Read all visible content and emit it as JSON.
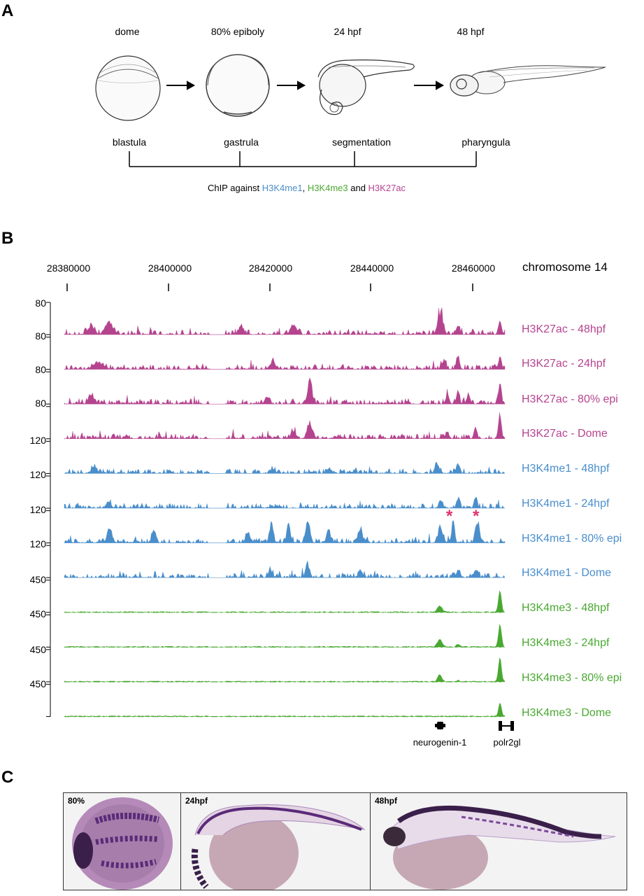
{
  "panels": {
    "a": "A",
    "b": "B",
    "c": "C"
  },
  "panel_a": {
    "stages": [
      "dome",
      "80% epiboly",
      "24 hpf",
      "48 hpf"
    ],
    "periods": [
      "blastula",
      "gastrula",
      "segmentation",
      "pharyngula"
    ],
    "chip_prefix": "ChIP against ",
    "chip_me1": "H3K4me1",
    "chip_sep1": ", ",
    "chip_me3": "H3K4me3",
    "chip_sep2": " and ",
    "chip_ac": "H3K27ac",
    "colors": {
      "me1": "#4a8ecb",
      "me3": "#4aa832",
      "ac": "#b5448f"
    }
  },
  "panel_b": {
    "coordinates": [
      "28380000",
      "28400000",
      "28420000",
      "28440000",
      "28460000"
    ],
    "chromosome": "chromosome 14",
    "scale_labels": [
      "80",
      "80",
      "80",
      "80",
      "120",
      "120",
      "120",
      "120",
      "450",
      "450",
      "450",
      "450"
    ],
    "tracks": [
      {
        "label": "H3K27ac - 48hpf",
        "mark": "ac"
      },
      {
        "label": "H3K27ac - 24hpf",
        "mark": "ac"
      },
      {
        "label": "H3K27ac - 80% epi",
        "mark": "ac"
      },
      {
        "label": "H3K27ac - Dome",
        "mark": "ac"
      },
      {
        "label": "H3K4me1 - 48hpf",
        "mark": "me1"
      },
      {
        "label": "H3K4me1 - 24hpf",
        "mark": "me1"
      },
      {
        "label": "H3K4me1 - 80% epi",
        "mark": "me1"
      },
      {
        "label": "H3K4me1 - Dome",
        "mark": "me1"
      },
      {
        "label": "H3K4me3 - 48hpf",
        "mark": "me3"
      },
      {
        "label": "H3K4me3 - 24hpf",
        "mark": "me3"
      },
      {
        "label": "H3K4me3 - 80% epi",
        "mark": "me3"
      },
      {
        "label": "H3K4me3 - Dome",
        "mark": "me3"
      }
    ],
    "asterisk": "*",
    "asterisk_color": "#e0336e",
    "genes": [
      "neurogenin-1",
      "polr2gl"
    ]
  },
  "panel_c": {
    "images": [
      "80%",
      "24hpf",
      "48hpf"
    ],
    "stain_color": "#5b2a78"
  }
}
